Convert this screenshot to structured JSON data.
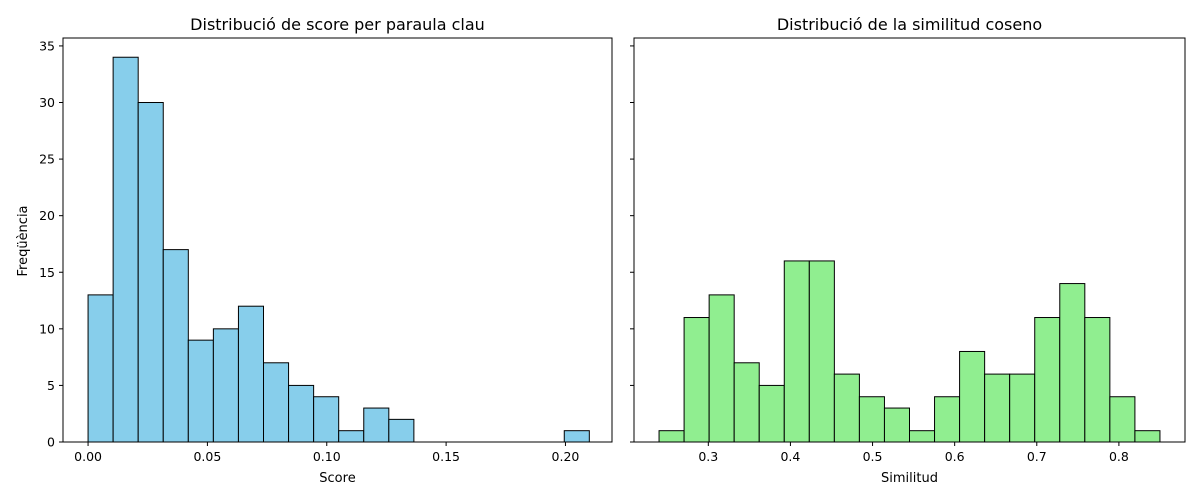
{
  "chart_data": [
    {
      "type": "bar",
      "title": "Distribució de score per paraula clau",
      "xlabel": "Score",
      "ylabel": "Freqüència",
      "xlim": [
        -0.0105,
        0.2195
      ],
      "ylim": [
        0,
        35.7
      ],
      "xticks": [
        0.0,
        0.05,
        0.1,
        0.15,
        0.2
      ],
      "xtick_labels": [
        "0.00",
        "0.05",
        "0.10",
        "0.15",
        "0.20"
      ],
      "yticks": [
        0,
        5,
        10,
        15,
        20,
        25,
        30,
        35
      ],
      "ytick_labels": [
        "0",
        "5",
        "10",
        "15",
        "20",
        "25",
        "30",
        "35"
      ],
      "bar_color": "#87ceeb",
      "edge_color": "#000000",
      "bin_edges": [
        0.0,
        0.0105,
        0.021,
        0.0315,
        0.042,
        0.0525,
        0.063,
        0.0735,
        0.084,
        0.0945,
        0.105,
        0.1155,
        0.126,
        0.1365,
        0.147,
        0.1575,
        0.168,
        0.1785,
        0.189,
        0.1995,
        0.21
      ],
      "values": [
        13,
        34,
        30,
        17,
        9,
        10,
        12,
        7,
        5,
        4,
        1,
        3,
        2,
        0,
        0,
        0,
        0,
        0,
        0,
        1
      ]
    },
    {
      "type": "bar",
      "title": "Distribució de la similitud coseno",
      "xlabel": "Similitud",
      "ylabel": "",
      "xlim": [
        0.2095,
        0.8805
      ],
      "ylim": [
        0,
        35.7
      ],
      "xticks": [
        0.3,
        0.4,
        0.5,
        0.6,
        0.7,
        0.8
      ],
      "xtick_labels": [
        "0.3",
        "0.4",
        "0.5",
        "0.6",
        "0.7",
        "0.8"
      ],
      "yticks": [
        0,
        5,
        10,
        15,
        20,
        25,
        30,
        35
      ],
      "ytick_labels": [
        "",
        "",
        "",
        "",
        "",
        "",
        "",
        ""
      ],
      "bar_color": "#90ee90",
      "edge_color": "#000000",
      "bin_edges": [
        0.24,
        0.2705,
        0.301,
        0.3315,
        0.362,
        0.3925,
        0.423,
        0.4535,
        0.484,
        0.5145,
        0.545,
        0.5755,
        0.606,
        0.6365,
        0.667,
        0.6975,
        0.728,
        0.7585,
        0.789,
        0.8195,
        0.85
      ],
      "values": [
        1,
        11,
        13,
        7,
        5,
        16,
        16,
        6,
        4,
        3,
        1,
        4,
        8,
        6,
        6,
        11,
        14,
        11,
        4,
        1
      ]
    }
  ]
}
